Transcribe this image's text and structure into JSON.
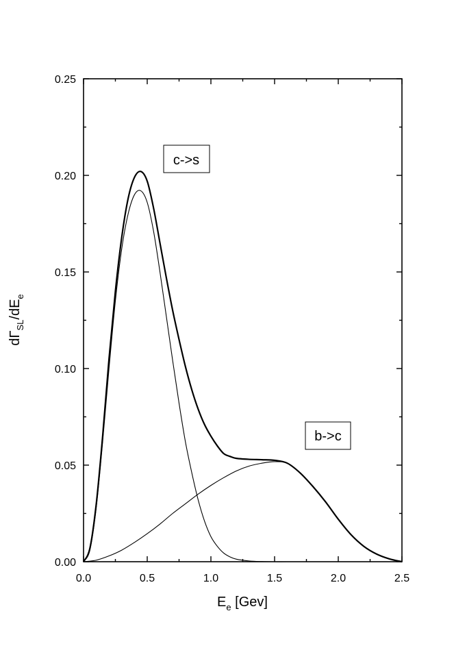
{
  "chart_data": {
    "type": "line",
    "title": "",
    "xlabel": {
      "main": "E",
      "sub": "e",
      "rest": " [Gev]"
    },
    "ylabel": {
      "d": "dΓ",
      "sub1": "SL",
      "mid": "/dE",
      "sub2": "e"
    },
    "xlim": [
      0.0,
      2.5
    ],
    "ylim": [
      0.0,
      0.25
    ],
    "x_ticks": [
      "0.0",
      "0.5",
      "1.0",
      "1.5",
      "2.0",
      "2.5"
    ],
    "y_ticks": [
      "0.00",
      "0.05",
      "0.10",
      "0.15",
      "0.20",
      "0.25"
    ],
    "grid": false,
    "legend": "none",
    "annotations": [
      {
        "text": "c->s",
        "x": 0.55,
        "y": 0.208
      },
      {
        "text": "b->c",
        "x": 1.9,
        "y": 0.065
      }
    ],
    "series": [
      {
        "style": "thick",
        "x": [
          0.0,
          0.05,
          0.1,
          0.15,
          0.2,
          0.25,
          0.3,
          0.35,
          0.4,
          0.45,
          0.5,
          0.55,
          0.6,
          0.65,
          0.7,
          0.75,
          0.8,
          0.85,
          0.9,
          0.95,
          1.0,
          1.05,
          1.1,
          1.15,
          1.2,
          1.3,
          1.4,
          1.5,
          1.6,
          1.7,
          1.8,
          1.9,
          2.0,
          2.1,
          2.2,
          2.3,
          2.4,
          2.5
        ],
        "values": [
          0.0,
          0.007,
          0.03,
          0.065,
          0.105,
          0.14,
          0.168,
          0.188,
          0.199,
          0.202,
          0.197,
          0.183,
          0.165,
          0.147,
          0.13,
          0.115,
          0.101,
          0.089,
          0.079,
          0.071,
          0.065,
          0.06,
          0.056,
          0.0545,
          0.0535,
          0.053,
          0.0528,
          0.0525,
          0.051,
          0.046,
          0.039,
          0.031,
          0.022,
          0.014,
          0.008,
          0.004,
          0.0015,
          0.0
        ]
      },
      {
        "style": "thin",
        "x": [
          0.0,
          0.05,
          0.1,
          0.15,
          0.2,
          0.25,
          0.3,
          0.35,
          0.4,
          0.45,
          0.5,
          0.55,
          0.6,
          0.65,
          0.7,
          0.75,
          0.8,
          0.85,
          0.9,
          0.95,
          1.0,
          1.05,
          1.1,
          1.15,
          1.2,
          1.3,
          1.4,
          1.5,
          1.6
        ],
        "values": [
          0.0,
          0.006,
          0.028,
          0.062,
          0.1,
          0.135,
          0.162,
          0.18,
          0.19,
          0.192,
          0.186,
          0.171,
          0.15,
          0.127,
          0.104,
          0.082,
          0.062,
          0.046,
          0.032,
          0.021,
          0.013,
          0.008,
          0.0045,
          0.0025,
          0.0013,
          0.0004,
          0.0001,
          0.0,
          0.0
        ]
      },
      {
        "style": "thin",
        "x": [
          0.0,
          0.1,
          0.2,
          0.3,
          0.4,
          0.5,
          0.6,
          0.7,
          0.8,
          0.9,
          1.0,
          1.1,
          1.2,
          1.3,
          1.4,
          1.5,
          1.6,
          1.7,
          1.8,
          1.9,
          2.0,
          2.1,
          2.2,
          2.3,
          2.4,
          2.5
        ],
        "values": [
          0.0,
          0.0008,
          0.003,
          0.006,
          0.01,
          0.0145,
          0.0195,
          0.025,
          0.03,
          0.035,
          0.0395,
          0.0435,
          0.047,
          0.0495,
          0.051,
          0.0518,
          0.051,
          0.046,
          0.039,
          0.031,
          0.022,
          0.014,
          0.008,
          0.004,
          0.0015,
          0.0
        ]
      }
    ]
  }
}
